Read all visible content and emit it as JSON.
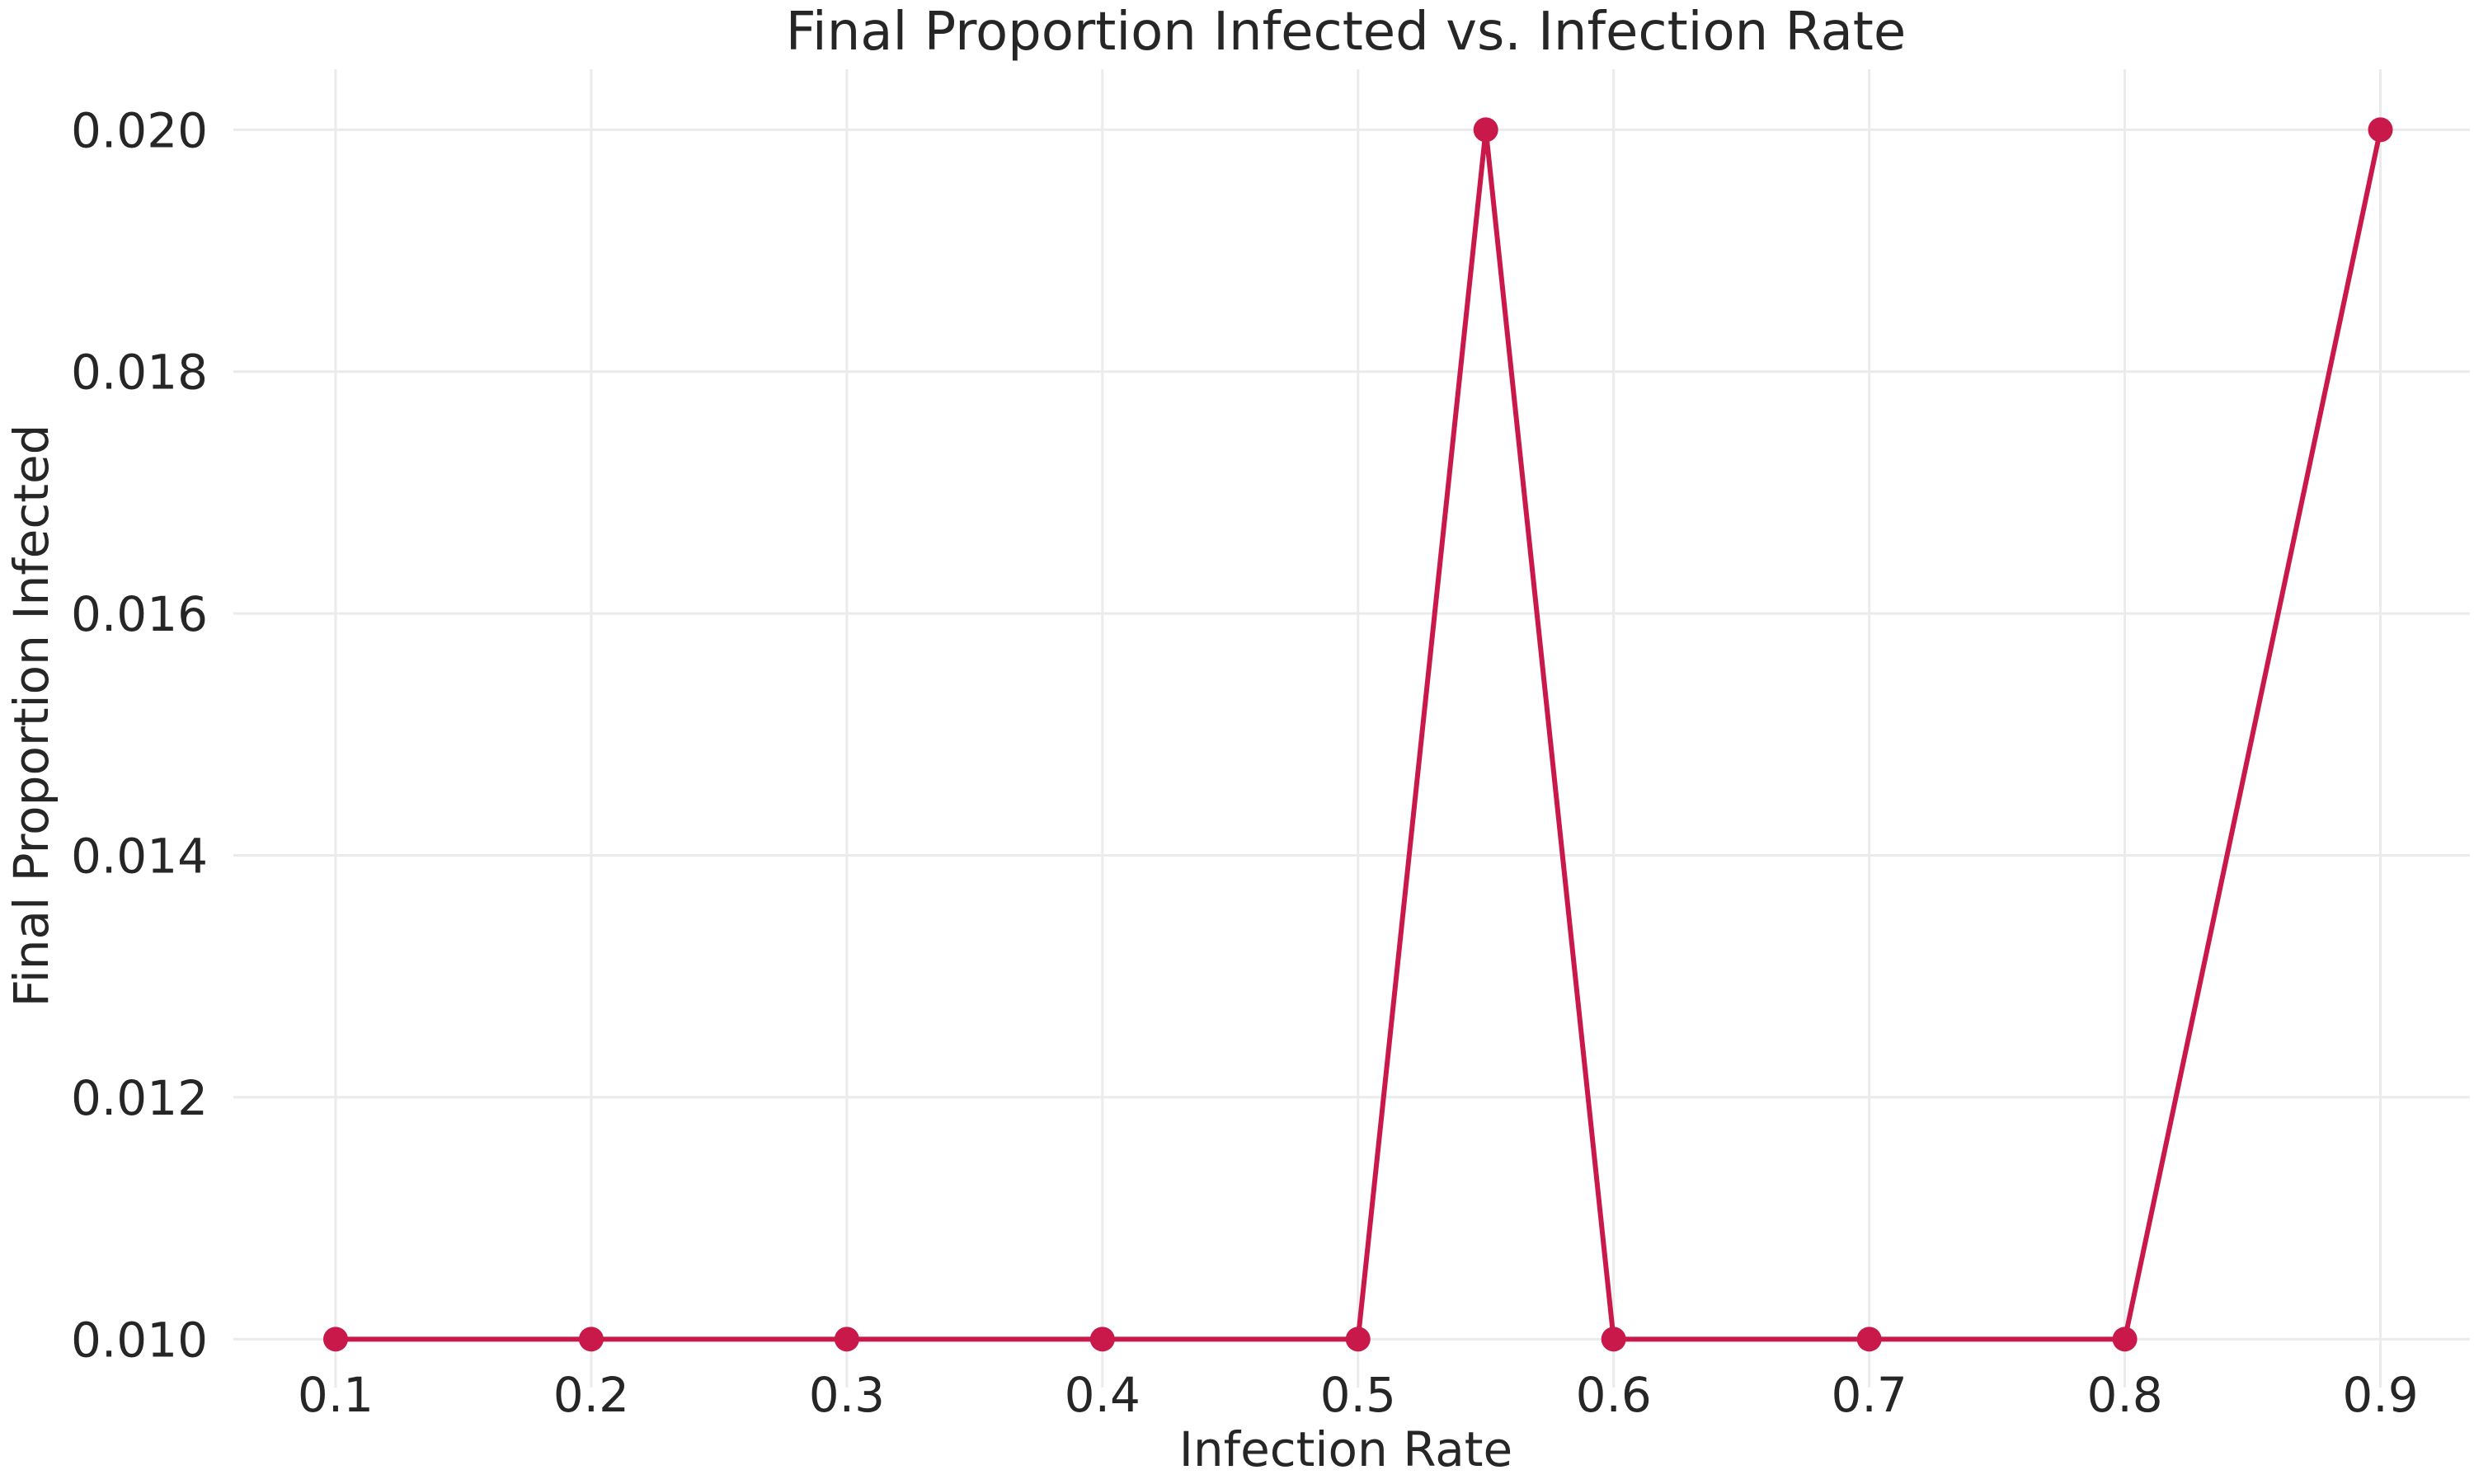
{
  "chart_data": {
    "type": "line",
    "title": "Final Proportion Infected vs. Infection Rate",
    "xlabel": "Infection Rate",
    "ylabel": "Final Proportion Infected",
    "x": [
      0.1,
      0.2,
      0.3,
      0.4,
      0.5,
      0.55,
      0.6,
      0.7,
      0.8,
      0.9
    ],
    "series": [
      {
        "values": [
          0.01,
          0.01,
          0.01,
          0.01,
          0.01,
          0.02,
          0.01,
          0.01,
          0.01,
          0.02
        ],
        "color": "#c9184a",
        "marker": "circle"
      }
    ],
    "xticks": [
      "0.1",
      "0.2",
      "0.3",
      "0.4",
      "0.5",
      "0.6",
      "0.7",
      "0.8",
      "0.9"
    ],
    "yticks": [
      "0.010",
      "0.012",
      "0.014",
      "0.016",
      "0.018",
      "0.020"
    ],
    "xlim": [
      0.06,
      0.935
    ],
    "ylim": [
      0.0096,
      0.0205
    ],
    "grid": true,
    "legend": "none",
    "colors": {
      "grid": "#ebebeb",
      "text": "#262626",
      "background": "#ffffff"
    }
  }
}
